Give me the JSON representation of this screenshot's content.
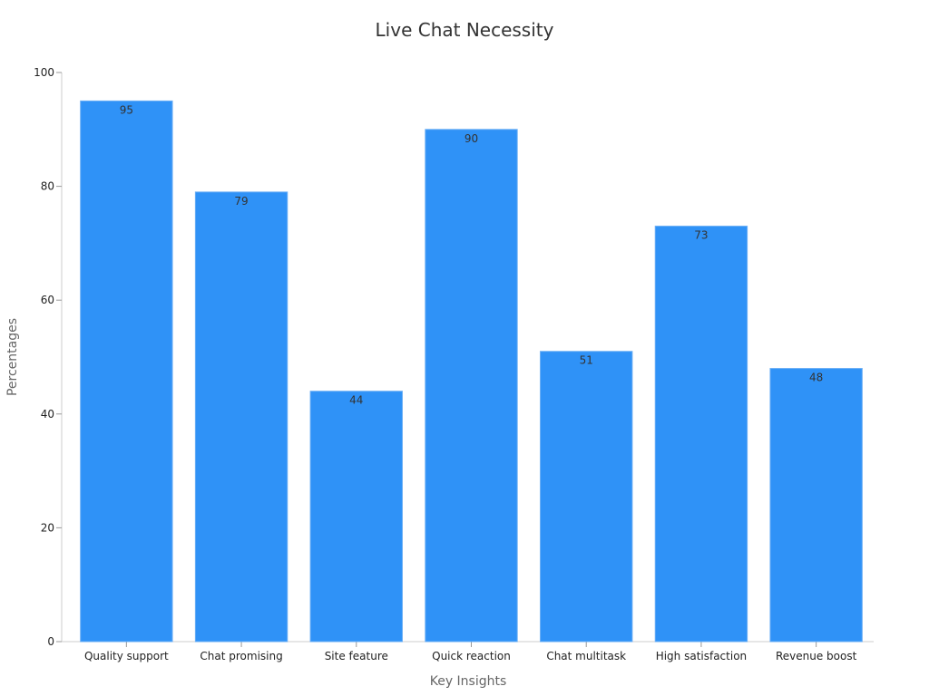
{
  "chart_data": {
    "type": "bar",
    "title": "Live Chat Necessity",
    "xlabel": "Key Insights",
    "ylabel": "Percentages",
    "categories": [
      "Quality support",
      "Chat promising",
      "Site feature",
      "Quick reaction",
      "Chat multitask",
      "High satisfaction",
      "Revenue boost"
    ],
    "values": [
      95,
      79,
      44,
      90,
      51,
      73,
      48
    ],
    "ylim": [
      0,
      100
    ],
    "yticks": [
      0,
      20,
      40,
      60,
      80,
      100
    ],
    "grid": false,
    "legend": "none",
    "colors": {
      "bar": "#2f92f7",
      "bar_edge": "#6aaef5"
    }
  }
}
